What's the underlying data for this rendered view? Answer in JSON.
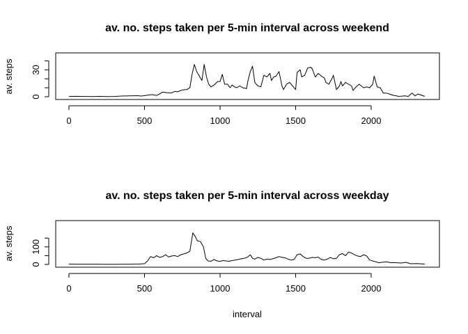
{
  "chart_data": [
    {
      "type": "line",
      "title": "av. no. steps taken per 5-min interval across weekend",
      "xlabel": "",
      "ylabel": "av. steps",
      "xlim": [
        0,
        2355
      ],
      "ylim": [
        0,
        45
      ],
      "xticks": [
        0,
        500,
        1000,
        1500,
        2000
      ],
      "yticks": [
        0,
        30
      ],
      "y_minor_ticks": [
        10,
        20,
        40
      ],
      "series": [
        {
          "x": [
            0,
            50,
            100,
            150,
            200,
            250,
            300,
            350,
            400,
            450,
            480,
            520,
            550,
            580,
            600,
            620,
            650,
            680,
            700,
            720,
            750,
            780,
            800,
            815,
            830,
            845,
            860,
            880,
            895,
            910,
            925,
            940,
            960,
            985,
            1000,
            1015,
            1030,
            1050,
            1065,
            1080,
            1095,
            1110,
            1130,
            1150,
            1175,
            1185,
            1200,
            1215,
            1230,
            1250,
            1270,
            1290,
            1310,
            1330,
            1340,
            1355,
            1370,
            1390,
            1410,
            1420,
            1440,
            1460,
            1480,
            1500,
            1510,
            1530,
            1540,
            1560,
            1580,
            1600,
            1610,
            1630,
            1650,
            1670,
            1690,
            1700,
            1720,
            1740,
            1750,
            1770,
            1790,
            1800,
            1810,
            1830,
            1850,
            1870,
            1880,
            1900,
            1920,
            1935,
            1950,
            1970,
            1990,
            2010,
            2020,
            2040,
            2060,
            2080,
            2100,
            2120,
            2150,
            2180,
            2200,
            2225,
            2245,
            2270,
            2290,
            2310,
            2355
          ],
          "y": [
            0.3,
            0.5,
            0.3,
            0.2,
            0.4,
            0.2,
            0.3,
            0.8,
            1.0,
            1.2,
            0.8,
            1.8,
            2.3,
            1.5,
            3.0,
            5.2,
            4.5,
            4.2,
            6.0,
            5.5,
            7.5,
            8.0,
            10.0,
            25.0,
            36.0,
            28.0,
            24.0,
            18.0,
            36.0,
            22.0,
            14.0,
            11.0,
            13.0,
            17.0,
            17.0,
            25.0,
            14.0,
            14.0,
            10.0,
            13.0,
            11.0,
            10.0,
            12.0,
            10.0,
            9.0,
            18.0,
            28.0,
            34.0,
            16.0,
            12.0,
            11.0,
            24.0,
            22.0,
            26.0,
            18.0,
            22.0,
            23.0,
            28.0,
            12.0,
            8.0,
            14.0,
            16.0,
            12.0,
            8.0,
            27.0,
            30.0,
            22.0,
            24.0,
            32.0,
            33.0,
            31.0,
            22.0,
            26.0,
            23.0,
            21.0,
            16.0,
            14.0,
            20.0,
            24.0,
            8.0,
            12.0,
            17.0,
            12.0,
            16.0,
            14.0,
            12.0,
            7.0,
            11.0,
            14.0,
            12.0,
            10.0,
            11.0,
            10.0,
            14.0,
            23.0,
            11.0,
            10.0,
            4.0,
            4.0,
            3.0,
            1.5,
            0.5,
            0.6,
            1.0,
            0.3,
            4.0,
            1.0,
            3.0,
            0.4
          ]
        }
      ]
    },
    {
      "type": "line",
      "title": "av. no. steps taken per 5-min interval across weekday",
      "xlabel": "interval",
      "ylabel": "av. steps",
      "xlim": [
        0,
        2355
      ],
      "ylim": [
        0,
        230
      ],
      "xticks": [
        0,
        500,
        1000,
        1500,
        2000
      ],
      "yticks": [
        0,
        100
      ],
      "y_minor_ticks": [
        50,
        150
      ],
      "series": [
        {
          "x": [
            0,
            50,
            100,
            150,
            200,
            250,
            300,
            350,
            400,
            450,
            480,
            500,
            520,
            540,
            560,
            580,
            600,
            620,
            640,
            660,
            680,
            700,
            720,
            740,
            760,
            780,
            800,
            820,
            835,
            850,
            870,
            890,
            905,
            920,
            940,
            960,
            980,
            1000,
            1020,
            1040,
            1060,
            1080,
            1100,
            1120,
            1140,
            1160,
            1180,
            1200,
            1215,
            1230,
            1250,
            1270,
            1290,
            1310,
            1330,
            1350,
            1370,
            1390,
            1410,
            1430,
            1450,
            1470,
            1490,
            1510,
            1530,
            1550,
            1570,
            1590,
            1610,
            1630,
            1650,
            1670,
            1690,
            1710,
            1730,
            1750,
            1770,
            1790,
            1810,
            1830,
            1850,
            1870,
            1890,
            1910,
            1930,
            1950,
            1970,
            1990,
            2010,
            2030,
            2050,
            2070,
            2100,
            2130,
            2160,
            2200,
            2230,
            2260,
            2300,
            2355
          ],
          "y": [
            2,
            1,
            1,
            1,
            1,
            0.5,
            0.5,
            1,
            1,
            2,
            3,
            4,
            20,
            45,
            38,
            50,
            40,
            45,
            55,
            42,
            48,
            50,
            45,
            55,
            60,
            65,
            75,
            180,
            160,
            135,
            130,
            100,
            35,
            20,
            18,
            28,
            20,
            18,
            22,
            20,
            18,
            22,
            25,
            28,
            32,
            35,
            40,
            55,
            35,
            30,
            40,
            35,
            25,
            30,
            28,
            32,
            38,
            45,
            40,
            38,
            30,
            25,
            28,
            55,
            60,
            45,
            35,
            35,
            40,
            38,
            42,
            28,
            25,
            30,
            40,
            32,
            35,
            55,
            62,
            50,
            70,
            65,
            55,
            48,
            45,
            55,
            48,
            25,
            20,
            15,
            10,
            12,
            15,
            10,
            10,
            8,
            12,
            4,
            5,
            2
          ]
        }
      ]
    }
  ]
}
